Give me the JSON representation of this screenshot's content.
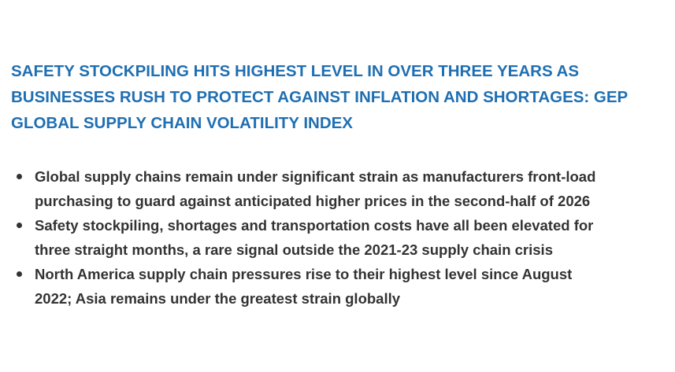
{
  "header": {
    "title_lines": [
      "SAFETY STOCKPILING HITS HIGHEST LEVEL IN OVER THREE YEARS AS",
      "BUSINESSES RUSH TO PROTECT AGAINST INFLATION AND SHORTAGES: GEP",
      "GLOBAL SUPPLY CHAIN VOLATILITY INDEX"
    ]
  },
  "bullets": [
    [
      "Global supply chains remain under significant strain as manufacturers front-load",
      "purchasing to guard against anticipated higher prices in the second-half of 2026"
    ],
    [
      "Safety stockpiling, shortages and transportation costs have all been elevated for",
      "three straight months, a rare signal outside the 2021-23 supply chain crisis"
    ],
    [
      "North America supply chain pressures rise to their highest level since August",
      "2022; Asia remains under the greatest strain globally"
    ]
  ]
}
